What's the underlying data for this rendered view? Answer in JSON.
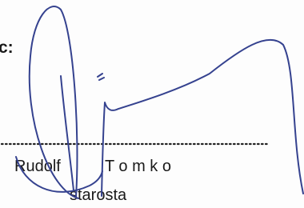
{
  "signature_block": {
    "label": "c:",
    "name": "Rudolf",
    "surname": "T o m k o",
    "title": "starosta"
  }
}
